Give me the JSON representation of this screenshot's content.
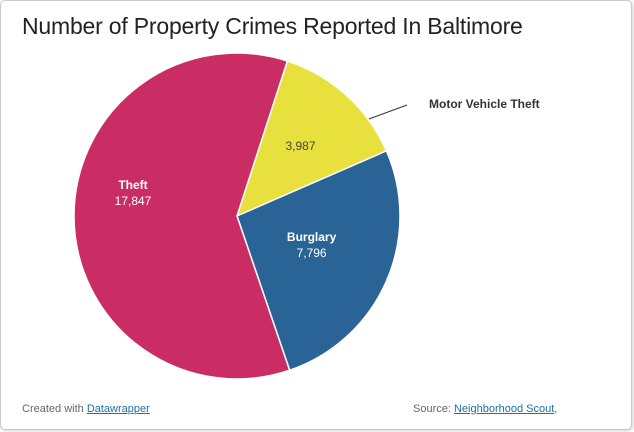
{
  "chart_data": {
    "type": "pie",
    "title": "Number of Property Crimes Reported In Baltimore",
    "slices": [
      {
        "label": "Motor Vehicle Theft",
        "value": 3987,
        "value_label": "3,987",
        "color": "#e8e03c",
        "label_color": "#444444",
        "external_label": true
      },
      {
        "label": "Burglary",
        "value": 7796,
        "value_label": "7,796",
        "color": "#2a6496",
        "label_color": "#ffffff",
        "external_label": false
      },
      {
        "label": "Theft",
        "value": 17847,
        "value_label": "17,847",
        "color": "#c92d63",
        "label_color": "#ffffff",
        "external_label": false
      }
    ]
  },
  "footer": {
    "created_prefix": "Created with ",
    "created_link": "Datawrapper",
    "source_prefix": "Source: ",
    "source_link": "Neighborhood Scout",
    "source_suffix": ","
  }
}
